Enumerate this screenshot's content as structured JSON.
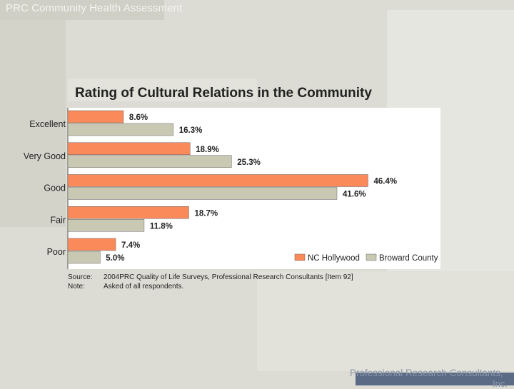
{
  "header": {
    "deck_title": "PRC Community Health Assessment"
  },
  "footer": {
    "company_line1": "Professional Research Consultants,",
    "company_line2": "Inc."
  },
  "chart_data": {
    "type": "bar",
    "orientation": "horizontal",
    "title": "Rating of Cultural Relations in the Community",
    "categories": [
      "Excellent",
      "Very Good",
      "Good",
      "Fair",
      "Poor"
    ],
    "series": [
      {
        "name": "NC Hollywood",
        "color": "#fb8a5a",
        "values": [
          8.6,
          18.9,
          46.4,
          18.7,
          7.4
        ],
        "labels": [
          "8.6%",
          "18.9%",
          "46.4%",
          "18.7%",
          "7.4%"
        ]
      },
      {
        "name": "Broward County",
        "color": "#c8c8b3",
        "values": [
          16.3,
          25.3,
          41.6,
          11.8,
          5.0
        ],
        "labels": [
          "16.3%",
          "25.3%",
          "41.6%",
          "11.8%",
          "5.0%"
        ]
      }
    ],
    "xlim": [
      0,
      60
    ],
    "grid": false,
    "legend": "bottom-right"
  },
  "notes": {
    "source_label": "Source:",
    "source_text": "2004PRC Quality of Life Surveys, Professional Research Consultants [Item 92]",
    "note_label": "Note:",
    "note_text": "Asked of all respondents."
  }
}
